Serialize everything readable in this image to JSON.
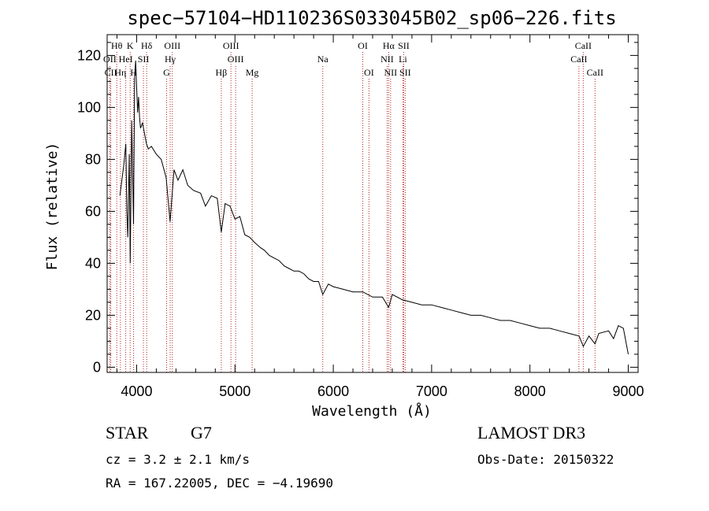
{
  "chart_data": {
    "type": "line",
    "title": "spec−57104−HD110236S033045B02_sp06−226.fits",
    "xlabel": "Wavelength (Å)",
    "ylabel": "Flux (relative)",
    "xlim": [
      3700,
      9100
    ],
    "ylim": [
      -2,
      128
    ],
    "xticks": [
      4000,
      5000,
      6000,
      7000,
      8000,
      9000
    ],
    "yticks": [
      0,
      20,
      40,
      60,
      80,
      100,
      120
    ],
    "series": [
      {
        "name": "flux",
        "x": [
          3830,
          3850,
          3870,
          3890,
          3900,
          3910,
          3925,
          3935,
          3950,
          3968,
          3980,
          3990,
          4000,
          4010,
          4020,
          4030,
          4040,
          4060,
          4080,
          4100,
          4120,
          4150,
          4200,
          4250,
          4300,
          4340,
          4380,
          4420,
          4470,
          4520,
          4580,
          4650,
          4700,
          4760,
          4820,
          4861,
          4900,
          4950,
          5000,
          5050,
          5100,
          5150,
          5200,
          5260,
          5300,
          5350,
          5400,
          5450,
          5500,
          5550,
          5600,
          5650,
          5700,
          5750,
          5800,
          5850,
          5893,
          5950,
          6000,
          6100,
          6200,
          6300,
          6400,
          6500,
          6563,
          6600,
          6700,
          6800,
          6900,
          7000,
          7100,
          7200,
          7300,
          7400,
          7500,
          7600,
          7700,
          7800,
          7900,
          8000,
          8100,
          8200,
          8300,
          8400,
          8500,
          8542,
          8600,
          8662,
          8700,
          8800,
          8850,
          8900,
          8950,
          9000
        ],
        "y": [
          66,
          72,
          78,
          86,
          60,
          50,
          82,
          40,
          95,
          55,
          112,
          118,
          108,
          98,
          104,
          96,
          92,
          94,
          90,
          86,
          84,
          85,
          82,
          80,
          73,
          56,
          76,
          72,
          76,
          70,
          68,
          67,
          62,
          66,
          65,
          52,
          63,
          62,
          57,
          58,
          51,
          50,
          48,
          46,
          45,
          43,
          42,
          41,
          39,
          38,
          37,
          37,
          36,
          34,
          33,
          33,
          28,
          32,
          31,
          30,
          29,
          29,
          27,
          27,
          23,
          28,
          26,
          25,
          24,
          24,
          23,
          22,
          21,
          20,
          20,
          19,
          18,
          18,
          17,
          16,
          15,
          15,
          14,
          13,
          12,
          8,
          12,
          9,
          13,
          14,
          11,
          16,
          15,
          5
        ]
      }
    ],
    "lines": [
      {
        "label": "Hθ",
        "x": 3798,
        "row": 1
      },
      {
        "label": "OII",
        "x": 3727,
        "row": 2
      },
      {
        "label": "CII",
        "x": 3737,
        "row": 3
      },
      {
        "label": "Hη",
        "x": 3835,
        "row": 3
      },
      {
        "label": "HeI",
        "x": 3889,
        "row": 2
      },
      {
        "label": "K",
        "x": 3934,
        "row": 1
      },
      {
        "label": "H",
        "x": 3969,
        "row": 3
      },
      {
        "label": "SII",
        "x": 4069,
        "row": 2
      },
      {
        "label": "Hδ",
        "x": 4102,
        "row": 1
      },
      {
        "label": "OIII",
        "x": 4363,
        "row": 1
      },
      {
        "label": "Hγ",
        "x": 4341,
        "row": 2
      },
      {
        "label": "G",
        "x": 4305,
        "row": 3
      },
      {
        "label": "Hβ",
        "x": 4861,
        "row": 3
      },
      {
        "label": "OIII",
        "x": 4959,
        "row": 1
      },
      {
        "label": "OIII",
        "x": 5007,
        "row": 2
      },
      {
        "label": "Mg",
        "x": 5175,
        "row": 3
      },
      {
        "label": "Na",
        "x": 5893,
        "row": 2
      },
      {
        "label": "OI",
        "x": 6300,
        "row": 1
      },
      {
        "label": "OI",
        "x": 6363,
        "row": 3
      },
      {
        "label": "Hα",
        "x": 6563,
        "row": 1
      },
      {
        "label": "NII",
        "x": 6548,
        "row": 2
      },
      {
        "label": "NII",
        "x": 6583,
        "row": 3
      },
      {
        "label": "SII",
        "x": 6716,
        "row": 1
      },
      {
        "label": "Li",
        "x": 6708,
        "row": 2
      },
      {
        "label": "SII",
        "x": 6731,
        "row": 3
      },
      {
        "label": "CaII",
        "x": 8542,
        "row": 1
      },
      {
        "label": "CaII",
        "x": 8498,
        "row": 2
      },
      {
        "label": "CaII",
        "x": 8662,
        "row": 3
      }
    ]
  },
  "info": {
    "class": "STAR",
    "subclass": "G7",
    "source": "LAMOST DR3",
    "cz": "cz = 3.2 ± 2.1 km/s",
    "obs_date": "Obs-Date: 20150322",
    "coords": "RA = 167.22005, DEC =  −4.19690"
  }
}
